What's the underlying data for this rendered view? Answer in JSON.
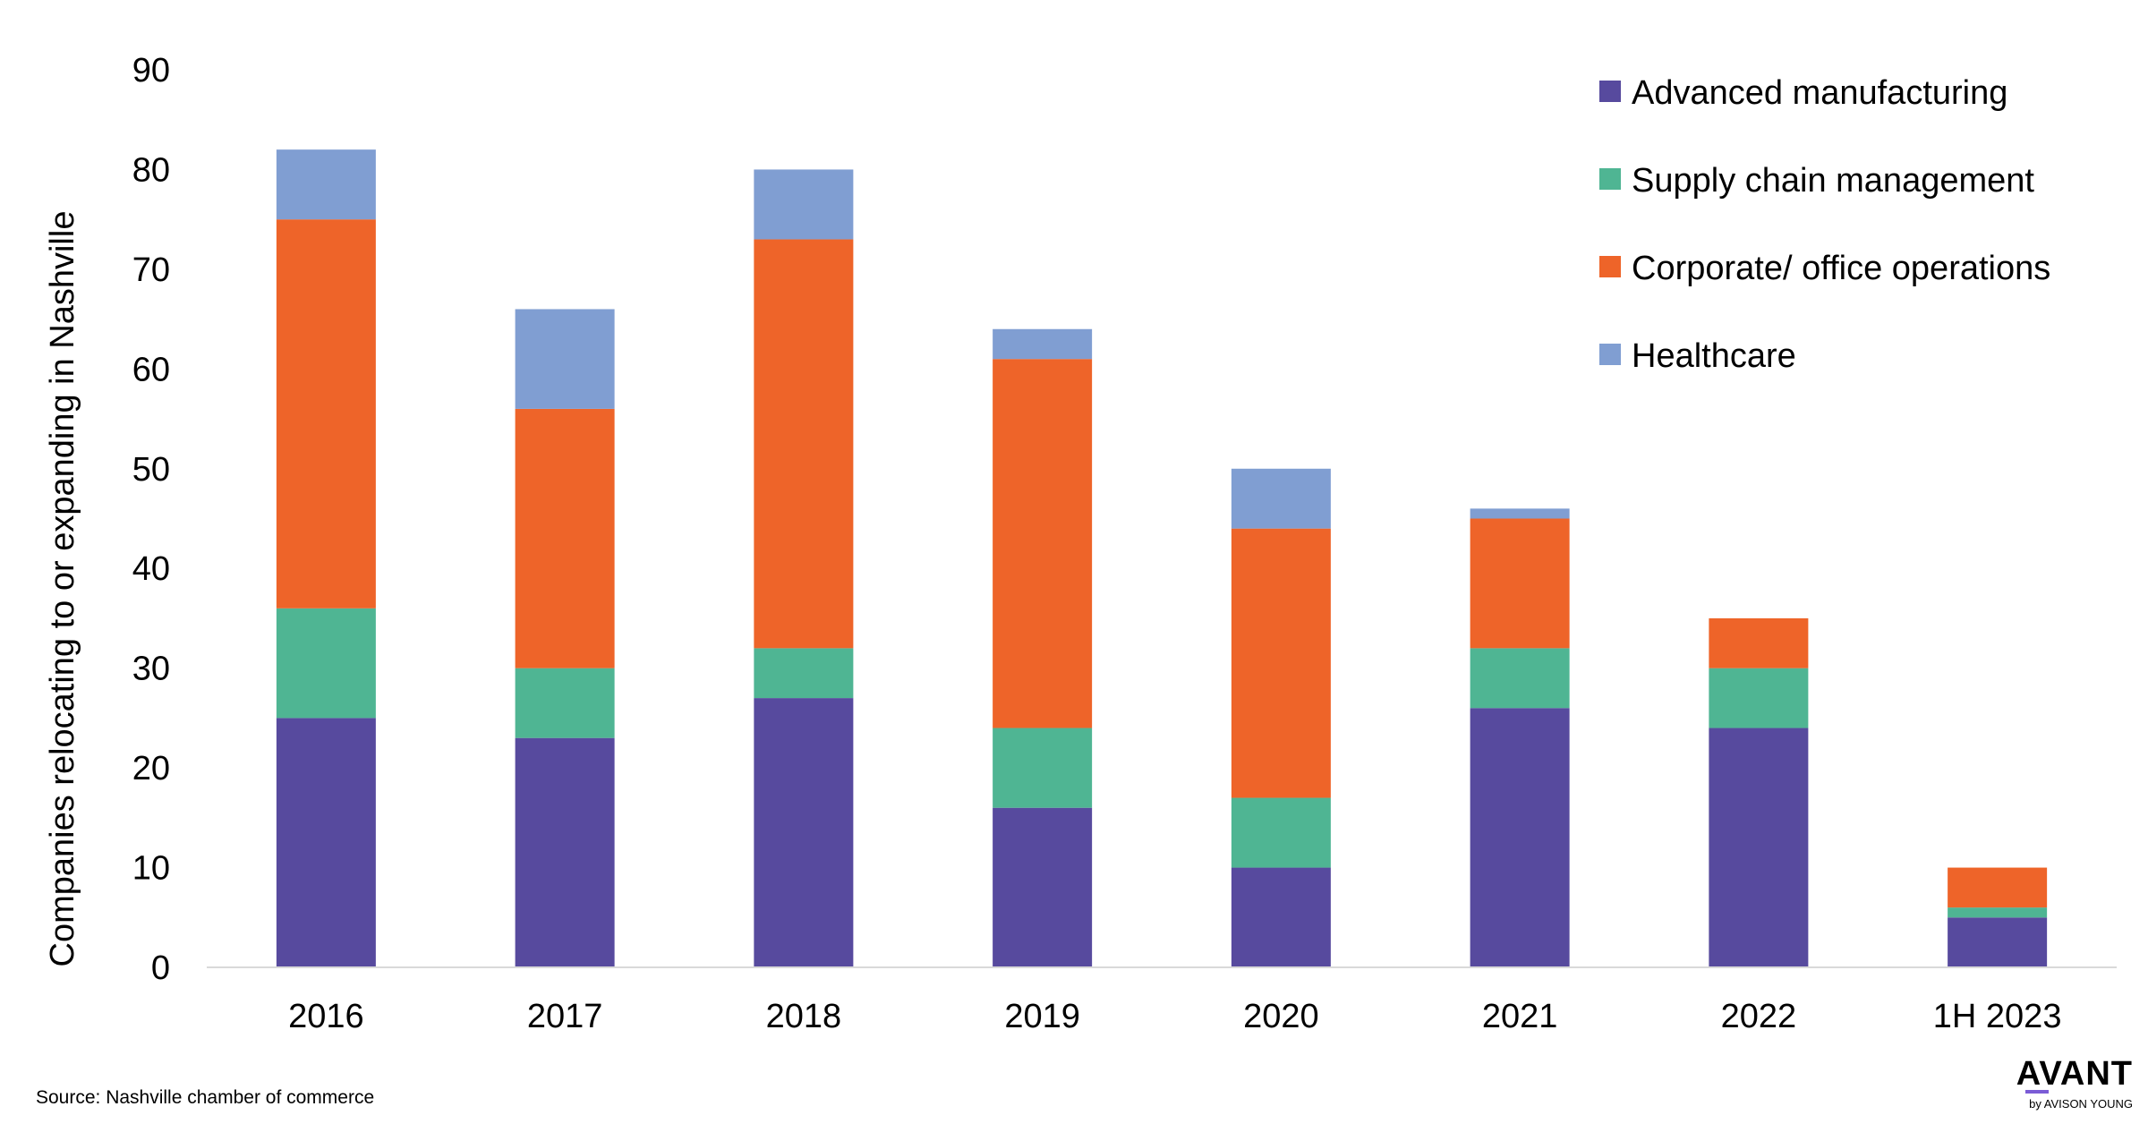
{
  "chart_data": {
    "type": "bar",
    "stacked": true,
    "categories": [
      "2016",
      "2017",
      "2018",
      "2019",
      "2020",
      "2021",
      "2022",
      "1H 2023"
    ],
    "series": [
      {
        "name": "Advanced manufacturing",
        "color": "#574a9e",
        "values": [
          25,
          23,
          27,
          16,
          10,
          26,
          24,
          5
        ]
      },
      {
        "name": "Supply chain management",
        "color": "#4fb593",
        "values": [
          11,
          7,
          5,
          8,
          7,
          6,
          6,
          1
        ]
      },
      {
        "name": "Corporate/ office operations",
        "color": "#ee6429",
        "values": [
          39,
          26,
          41,
          37,
          27,
          13,
          5,
          4
        ]
      },
      {
        "name": "Healthcare",
        "color": "#809ed2",
        "values": [
          7,
          10,
          7,
          3,
          6,
          1,
          0,
          0
        ]
      }
    ],
    "ylabel": "Companies relocating to or expanding in Nashville",
    "ylim": [
      0,
      90
    ],
    "yticks": [
      0,
      10,
      20,
      30,
      40,
      50,
      60,
      70,
      80,
      90
    ],
    "grid": false,
    "legend_position": "top-right"
  },
  "source": "Source: Nashville chamber of commerce",
  "logo": {
    "main": "AVANT",
    "sub": "by AVISON YOUNG",
    "accent_color": "#7b5cd6"
  }
}
